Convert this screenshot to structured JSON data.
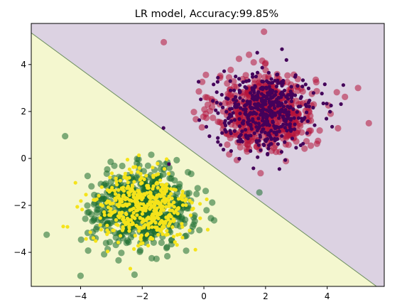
{
  "chart_data": {
    "type": "scatter",
    "title": "LR model, Accuracy:99.85%",
    "xlabel": "",
    "ylabel": "",
    "xlim": [
      -5.6,
      5.85
    ],
    "ylim": [
      -5.45,
      5.75
    ],
    "xticks": [
      -4,
      -2,
      0,
      2,
      4
    ],
    "yticks": [
      -4,
      -2,
      0,
      2,
      4
    ],
    "xtick_labels": [
      "−4",
      "−2",
      "0",
      "2",
      "4"
    ],
    "ytick_labels": [
      "−4",
      "−2",
      "0",
      "2",
      "4"
    ],
    "grid": false,
    "legend": "none",
    "decision_boundary": {
      "line": [
        [
          -5.6,
          5.35
        ],
        [
          5.6,
          -5.45
        ]
      ],
      "region_above_color": "#dcd2e2",
      "region_below_color": "#f4f7cf",
      "boundary_color": "#6d8f5f"
    },
    "clusters": [
      {
        "center": [
          2.0,
          2.0
        ],
        "std": 0.8,
        "large_marker_color": "#b5123b",
        "small_marker_color": "#44015a",
        "n_large": 620,
        "n_small": 460
      },
      {
        "center": [
          -2.0,
          -2.1
        ],
        "std": 0.8,
        "large_marker_color": "#1a6b2d",
        "small_marker_color": "#f5e31a",
        "n_large": 620,
        "n_small": 460
      }
    ],
    "notable_points": [
      {
        "x": 1.95,
        "y": 5.4,
        "cluster": 0
      },
      {
        "x": -1.3,
        "y": 4.95,
        "cluster": 0
      },
      {
        "x": 5.35,
        "y": 1.5,
        "cluster": 0
      },
      {
        "x": 5.0,
        "y": 3.0,
        "cluster": 0
      },
      {
        "x": -4.5,
        "y": 0.95,
        "cluster": 1
      },
      {
        "x": -5.1,
        "y": -3.25,
        "cluster": 1
      },
      {
        "x": -2.25,
        "y": -4.95,
        "cluster": 1
      },
      {
        "x": -4.0,
        "y": -5.0,
        "cluster": 1
      },
      {
        "x": 1.8,
        "y": -1.45,
        "cluster": 1
      }
    ]
  }
}
